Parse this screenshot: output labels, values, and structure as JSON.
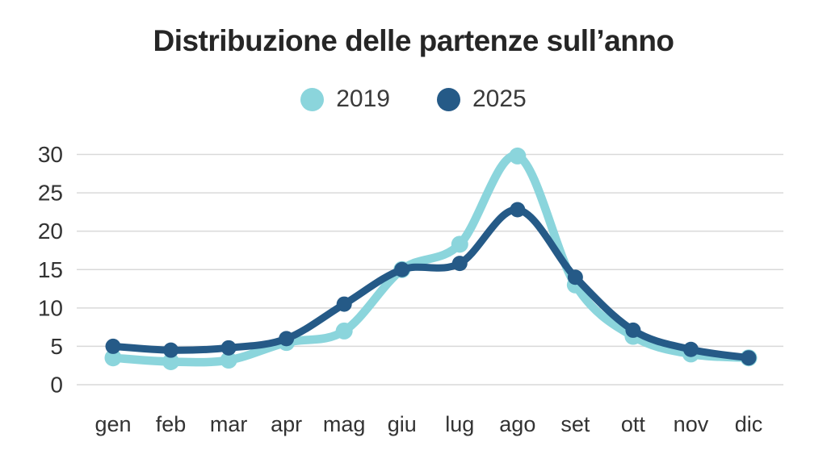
{
  "chart_data": {
    "type": "line",
    "title": "Distribuzione delle partenze sull’anno",
    "categories": [
      "gen",
      "feb",
      "mar",
      "apr",
      "mag",
      "giu",
      "lug",
      "ago",
      "set",
      "ott",
      "nov",
      "dic"
    ],
    "series": [
      {
        "name": "2019",
        "color": "#8BD5DC",
        "values": [
          3.5,
          3.0,
          3.2,
          5.5,
          7.0,
          15.0,
          18.3,
          29.8,
          13.0,
          6.3,
          4.0,
          3.5
        ]
      },
      {
        "name": "2025",
        "color": "#255A87",
        "values": [
          5.0,
          4.5,
          4.8,
          6.0,
          10.5,
          15.0,
          15.8,
          22.8,
          14.0,
          7.1,
          4.6,
          3.5
        ]
      }
    ],
    "xlabel": "",
    "ylabel": "",
    "ylim": [
      0,
      30
    ],
    "yticks": [
      0,
      5,
      10,
      15,
      20,
      25,
      30
    ],
    "grid": true,
    "grid_color": "#d9d9d9",
    "text_color": "#333333",
    "legend_position": "top",
    "background_color": "#ffffff"
  }
}
